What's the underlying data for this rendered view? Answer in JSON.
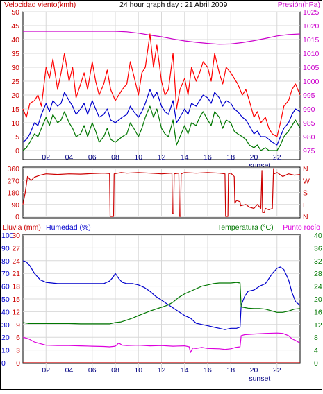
{
  "chart_data": [
    {
      "type": "line",
      "title": "24 hour graph day : 21 Abril 2009",
      "ylabel_left": "Velocidad viento(kmh)",
      "ylabel_right": "Presión(hPa)",
      "xticks": [
        "02",
        "04",
        "06",
        "08",
        "10",
        "12",
        "14",
        "16",
        "18",
        "20",
        "22"
      ],
      "sunset_label": "sunset",
      "sunset_hour": 20.5,
      "y_left_ticks": [
        "0",
        "5",
        "10",
        "15",
        "20",
        "25",
        "30",
        "35",
        "40",
        "45",
        "50"
      ],
      "y_right_ticks": [
        "975",
        "980",
        "985",
        "990",
        "995",
        "1000",
        "1005",
        "1010",
        "1015",
        "1020",
        "1025"
      ],
      "ylim_left": [
        0,
        50
      ],
      "ylim_right": [
        975,
        1025
      ],
      "xlim": [
        0,
        24
      ],
      "series": [
        {
          "axis": "right",
          "color": "#cc00cc",
          "x": [
            0,
            2,
            4,
            6,
            8,
            9,
            10,
            11,
            12,
            13,
            14,
            15,
            16,
            17,
            18,
            19,
            20,
            21,
            22,
            23,
            24
          ],
          "values": [
            1018,
            1018,
            1018,
            1018,
            1018,
            1017.8,
            1017.3,
            1016.6,
            1016,
            1015.2,
            1014.5,
            1014,
            1013.6,
            1013.3,
            1013.4,
            1013.9,
            1014.6,
            1015.4,
            1016.3,
            1016.8,
            1017
          ]
        },
        {
          "axis": "left",
          "color": "#ff0000",
          "x": [
            0,
            0.3,
            0.6,
            1,
            1.3,
            1.6,
            2,
            2.3,
            2.6,
            3,
            3.3,
            3.6,
            4,
            4.3,
            4.6,
            5,
            5.3,
            5.6,
            6,
            6.3,
            6.6,
            7,
            7.3,
            7.6,
            8,
            8.3,
            8.6,
            9,
            9.3,
            9.6,
            10,
            10.3,
            10.6,
            11,
            11.3,
            11.6,
            12,
            12.3,
            12.6,
            13,
            13.3,
            13.6,
            14,
            14.3,
            14.6,
            15,
            15.3,
            15.6,
            16,
            16.3,
            16.6,
            17,
            17.3,
            17.6,
            18,
            18.3,
            18.6,
            19,
            19.3,
            19.6,
            20,
            20.3,
            20.6,
            21,
            21.3,
            21.6,
            22,
            22.3,
            22.6,
            23,
            23.3,
            23.6,
            24
          ],
          "values": [
            15,
            12,
            17,
            18,
            20,
            16,
            30,
            26,
            33,
            22,
            28,
            35,
            25,
            30,
            19,
            24,
            28,
            22,
            32,
            25,
            20,
            24,
            29,
            22,
            18,
            20,
            22,
            24,
            32,
            27,
            20,
            28,
            30,
            42,
            30,
            38,
            25,
            20,
            22,
            35,
            15,
            22,
            26,
            20,
            30,
            25,
            28,
            32,
            30,
            25,
            35,
            28,
            24,
            30,
            28,
            26,
            24,
            20,
            22,
            18,
            12,
            14,
            10,
            12,
            8,
            6,
            5,
            10,
            16,
            18,
            22,
            24,
            20
          ]
        },
        {
          "axis": "left",
          "color": "#0000cc",
          "x": [
            0,
            0.3,
            0.6,
            1,
            1.3,
            1.6,
            2,
            2.3,
            2.6,
            3,
            3.3,
            3.6,
            4,
            4.3,
            4.6,
            5,
            5.3,
            5.6,
            6,
            6.3,
            6.6,
            7,
            7.3,
            7.6,
            8,
            8.3,
            8.6,
            9,
            9.3,
            9.6,
            10,
            10.3,
            10.6,
            11,
            11.3,
            11.6,
            12,
            12.3,
            12.6,
            13,
            13.3,
            13.6,
            14,
            14.3,
            14.6,
            15,
            15.3,
            15.6,
            16,
            16.3,
            16.6,
            17,
            17.3,
            17.6,
            18,
            18.3,
            18.6,
            19,
            19.3,
            19.6,
            20,
            20.3,
            20.6,
            21,
            21.3,
            21.6,
            22,
            22.3,
            22.6,
            23,
            23.3,
            23.6,
            24
          ],
          "values": [
            3,
            4,
            6,
            10,
            9,
            13,
            17,
            14,
            18,
            16,
            17,
            21,
            18,
            16,
            13,
            15,
            17,
            13,
            18,
            15,
            12,
            13,
            15,
            11,
            10,
            11,
            12,
            13,
            16,
            14,
            12,
            14,
            17,
            22,
            19,
            21,
            16,
            14,
            13,
            18,
            10,
            12,
            15,
            13,
            17,
            16,
            18,
            20,
            19,
            17,
            21,
            19,
            16,
            18,
            17,
            15,
            14,
            12,
            11,
            9,
            6,
            7,
            5,
            5,
            4,
            3,
            2,
            5,
            8,
            10,
            13,
            15,
            14
          ]
        },
        {
          "axis": "left",
          "color": "#007700",
          "x": [
            0,
            0.3,
            0.6,
            1,
            1.3,
            1.6,
            2,
            2.3,
            2.6,
            3,
            3.3,
            3.6,
            4,
            4.3,
            4.6,
            5,
            5.3,
            5.6,
            6,
            6.3,
            6.6,
            7,
            7.3,
            7.6,
            8,
            8.3,
            8.6,
            9,
            9.3,
            9.6,
            10,
            10.3,
            10.6,
            11,
            11.3,
            11.6,
            12,
            12.3,
            12.6,
            13,
            13.3,
            13.6,
            14,
            14.3,
            14.6,
            15,
            15.3,
            15.6,
            16,
            16.3,
            16.6,
            17,
            17.3,
            17.6,
            18,
            18.3,
            18.6,
            19,
            19.3,
            19.6,
            20,
            20.3,
            20.6,
            21,
            21.3,
            21.6,
            22,
            22.3,
            22.6,
            23,
            23.3,
            23.6,
            24
          ],
          "values": [
            0,
            1,
            3,
            6,
            5,
            8,
            12,
            9,
            13,
            10,
            11,
            14,
            10,
            8,
            5,
            6,
            9,
            5,
            10,
            7,
            3,
            5,
            8,
            4,
            3,
            4,
            5,
            6,
            10,
            8,
            5,
            8,
            12,
            16,
            12,
            15,
            8,
            6,
            5,
            11,
            2,
            5,
            9,
            6,
            10,
            9,
            12,
            14,
            11,
            9,
            14,
            12,
            8,
            11,
            10,
            7,
            6,
            5,
            4,
            2,
            1,
            2,
            0,
            1,
            0,
            0,
            0,
            2,
            5,
            7,
            9,
            11,
            8
          ]
        }
      ]
    },
    {
      "type": "line",
      "xticks": [
        "02",
        "04",
        "06",
        "08",
        "10",
        "12",
        "14",
        "16",
        "18",
        "20",
        "22"
      ],
      "sunset_label": "sunset",
      "y_left_ticks": [
        "360",
        "270",
        "180",
        "90",
        "0"
      ],
      "y_right_ticks": [
        "N",
        "W",
        "S",
        "E",
        "N"
      ],
      "ylim_left": [
        0,
        360
      ],
      "xlim": [
        0,
        24
      ],
      "series": [
        {
          "color": "#cc0000",
          "x": [
            0,
            0.2,
            0.4,
            0.7,
            1,
            1.5,
            2,
            3,
            4,
            5,
            6,
            7,
            7.5,
            7.55,
            7.85,
            7.9,
            8.5,
            9,
            10,
            11,
            12,
            12.9,
            12.95,
            13.05,
            13.1,
            13.5,
            13.55,
            13.65,
            13.7,
            14,
            15,
            16,
            17,
            17.5,
            17.55,
            17.75,
            17.8,
            18,
            18.3,
            18.35,
            18.5,
            18.8,
            18.85,
            19.3,
            19.6,
            20,
            20.3,
            20.6,
            20.7,
            20.75,
            20.9,
            21,
            21.3,
            21.6,
            21.7,
            21.75,
            22,
            22.5,
            23,
            23.5,
            24
          ],
          "values": [
            90,
            180,
            300,
            270,
            295,
            310,
            320,
            315,
            320,
            318,
            322,
            325,
            322,
            0,
            0,
            320,
            330,
            325,
            330,
            325,
            320,
            325,
            20,
            20,
            320,
            325,
            0,
            0,
            320,
            330,
            325,
            330,
            325,
            320,
            0,
            0,
            320,
            325,
            300,
            100,
            120,
            110,
            80,
            90,
            70,
            60,
            90,
            60,
            345,
            30,
            30,
            60,
            50,
            60,
            360,
            320,
            330,
            300,
            320,
            310,
            315
          ]
        }
      ]
    },
    {
      "type": "line",
      "ylabel_left_1": "Lluvia (mm)",
      "ylabel_left_2": "Humedad (%)",
      "ylabel_right_1": "Temperatura (°C)",
      "ylabel_right_2": "Punto rocío",
      "xticks": [
        "02",
        "04",
        "06",
        "08",
        "10",
        "12",
        "14",
        "16",
        "18",
        "20",
        "22"
      ],
      "sunset_label": "sunset",
      "y_rain_ticks": [
        "30",
        "27",
        "24",
        "21",
        "18",
        "15",
        "12",
        "9",
        "6",
        "3",
        "0"
      ],
      "y_hum_ticks": [
        "100",
        "90",
        "80",
        "70",
        "60",
        "50",
        "40",
        "30",
        "20",
        "10",
        "0"
      ],
      "y_temp_ticks": [
        "40",
        "36",
        "32",
        "28",
        "24",
        "20",
        "16",
        "12",
        "8",
        "4",
        "0"
      ],
      "ylim_humidity": [
        0,
        100
      ],
      "ylim_temperature": [
        0,
        40
      ],
      "xlim": [
        0,
        24
      ],
      "series": [
        {
          "unit": "humidity",
          "color": "#0000cc",
          "x": [
            0,
            0.3,
            0.6,
            1,
            1.5,
            2,
            3,
            4,
            5,
            6,
            7,
            7.5,
            7.8,
            8,
            8.3,
            8.6,
            9,
            9.5,
            10,
            10.5,
            11,
            11.5,
            12,
            12.5,
            13,
            13.5,
            14,
            14.5,
            15,
            15.5,
            16,
            16.5,
            17,
            17.5,
            18,
            18.5,
            18.8,
            18.9,
            19.2,
            19.5,
            20,
            20.5,
            21,
            21.3,
            21.6,
            22,
            22.3,
            22.6,
            23,
            23.3,
            23.6,
            24
          ],
          "values": [
            80,
            79,
            76,
            70,
            65,
            63,
            62,
            62,
            62,
            62,
            62,
            64,
            67,
            70,
            66,
            63,
            62,
            62,
            61,
            59,
            56,
            52,
            49,
            46,
            43,
            40,
            37,
            35,
            31,
            30,
            29,
            28,
            27,
            26,
            27,
            27,
            28,
            45,
            52,
            56,
            57,
            60,
            62,
            66,
            70,
            74,
            75,
            73,
            65,
            55,
            48,
            45
          ]
        },
        {
          "unit": "temperature",
          "color": "#007700",
          "x": [
            0,
            0.5,
            1,
            2,
            3,
            4,
            5,
            6,
            7,
            7.5,
            8,
            8.5,
            9,
            9.5,
            10,
            10.5,
            11,
            11.5,
            12,
            12.5,
            13,
            13.5,
            14,
            14.5,
            15,
            15.5,
            16,
            16.5,
            17,
            17.5,
            18,
            18.5,
            18.8,
            18.9,
            19.2,
            19.5,
            20,
            20.5,
            21,
            21.5,
            22,
            22.5,
            23,
            23.5,
            24
          ],
          "values": [
            12.6,
            12.3,
            12.3,
            12.3,
            12.3,
            12.3,
            12.2,
            12.2,
            12.2,
            12.2,
            12.6,
            12.8,
            13.4,
            14,
            14.8,
            15.5,
            16.2,
            16.8,
            17.4,
            18,
            19,
            20.5,
            21.6,
            22.4,
            23.2,
            24,
            24.4,
            24.8,
            25,
            25,
            25,
            25.2,
            25,
            17.5,
            17.3,
            17.1,
            17,
            17,
            16.8,
            16.3,
            15.8,
            15.8,
            16.2,
            16.8,
            17
          ]
        },
        {
          "unit": "temperature",
          "color": "#dd00dd",
          "x": [
            0,
            0.5,
            1,
            1.5,
            2,
            3,
            4,
            5,
            6,
            7,
            7.5,
            8,
            8.3,
            8.6,
            9,
            10,
            11,
            12,
            13,
            14,
            14.4,
            14.5,
            14.7,
            15,
            15.5,
            16,
            17,
            17.5,
            18,
            18.4,
            18.8,
            18.9,
            19.2,
            20,
            21,
            22,
            22.5,
            23,
            23.3,
            23.6,
            24
          ],
          "values": [
            8,
            7.5,
            6.5,
            6,
            5.5,
            5.4,
            5.4,
            5.3,
            5.2,
            5.1,
            5,
            5.2,
            6.2,
            5.5,
            5.4,
            5.5,
            5.3,
            5.4,
            5.2,
            5.3,
            5,
            3.2,
            4.6,
            4.5,
            4.8,
            4.5,
            4.4,
            4.2,
            4.4,
            4.8,
            5,
            8.5,
            8.8,
            9,
            9.2,
            9.3,
            9.2,
            8.5,
            7.5,
            7,
            6.2
          ]
        },
        {
          "unit": "humidity",
          "color": "#cc0000",
          "x": [
            0,
            24
          ],
          "values": [
            0,
            0
          ]
        }
      ]
    }
  ]
}
